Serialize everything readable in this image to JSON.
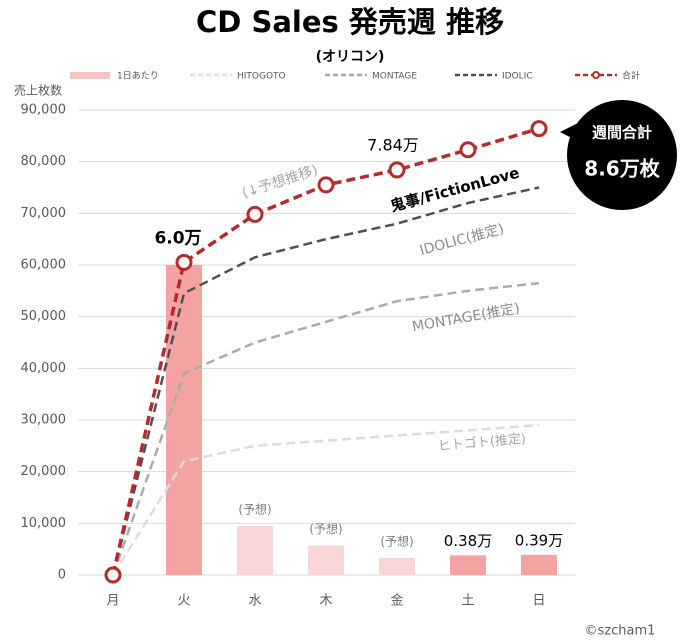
{
  "chart_data": {
    "type": "combo",
    "title": "CD Sales  発売週  推移",
    "subtitle": "(オリコン)",
    "y_label": "売上枚数",
    "categories": [
      "月",
      "火",
      "水",
      "木",
      "金",
      "土",
      "日"
    ],
    "ylim": [
      0,
      90000
    ],
    "yticks": [
      0,
      {
        "value": 10000,
        "label": "10,000"
      },
      {
        "value": 20000,
        "label": "20,000"
      },
      {
        "value": 30000,
        "label": "30,000"
      },
      {
        "value": 40000,
        "label": "40,000"
      },
      {
        "value": 50000,
        "label": "50,000"
      },
      {
        "value": 60000,
        "label": "60,000"
      },
      {
        "value": 70000,
        "label": "70,000"
      },
      {
        "value": 80000,
        "label": "80,000"
      },
      {
        "value": 90000,
        "label": "90,000"
      }
    ],
    "grid": true,
    "legend": "top",
    "series": [
      {
        "name": "1日あたり",
        "type": "bar",
        "color": "#f5c4c4",
        "colors": [
          "#f4a3a3",
          "#f4a3a3",
          "#f8d6d6",
          "#f8d6d6",
          "#f8d6d6",
          "#f4a3a3",
          "#f4a3a3"
        ],
        "values": [
          0,
          60000,
          9500,
          5700,
          3300,
          3800,
          3900
        ],
        "notes": [
          null,
          null,
          "(予想)",
          "(予想)",
          "(予想)",
          null,
          null
        ],
        "value_labels": [
          null,
          null,
          null,
          null,
          null,
          "0.38万",
          "0.39万"
        ]
      },
      {
        "name": "HITOGOTO",
        "type": "line",
        "color": "#dcdcdc",
        "dash": true,
        "values": [
          0,
          22000,
          25000,
          26000,
          27000,
          28000,
          29000
        ]
      },
      {
        "name": "MONTAGE",
        "type": "line",
        "color": "#ababab",
        "dash": true,
        "values": [
          0,
          39000,
          45000,
          49000,
          53000,
          55000,
          56500
        ]
      },
      {
        "name": "IDOLIC",
        "type": "line",
        "color": "#505050",
        "dash": true,
        "values": [
          0,
          54500,
          61500,
          65000,
          68000,
          72000,
          75000
        ]
      },
      {
        "name": "合計",
        "type": "line",
        "color": "#b52a2a",
        "dash": true,
        "markers": true,
        "values": [
          0,
          60500,
          69800,
          75500,
          78400,
          82300,
          86400
        ],
        "value_labels": [
          null,
          "6.0万",
          null,
          null,
          "7.84万",
          null,
          null
        ]
      }
    ],
    "annotations": [
      "(↓予想推移)",
      "鬼事/FictionLove",
      "IDOLIC(推定)",
      "MONTAGE(推定)",
      "ヒトゴト(推定)",
      "©szcham1"
    ],
    "callout": [
      "週間合計",
      "8.6万枚"
    ]
  }
}
